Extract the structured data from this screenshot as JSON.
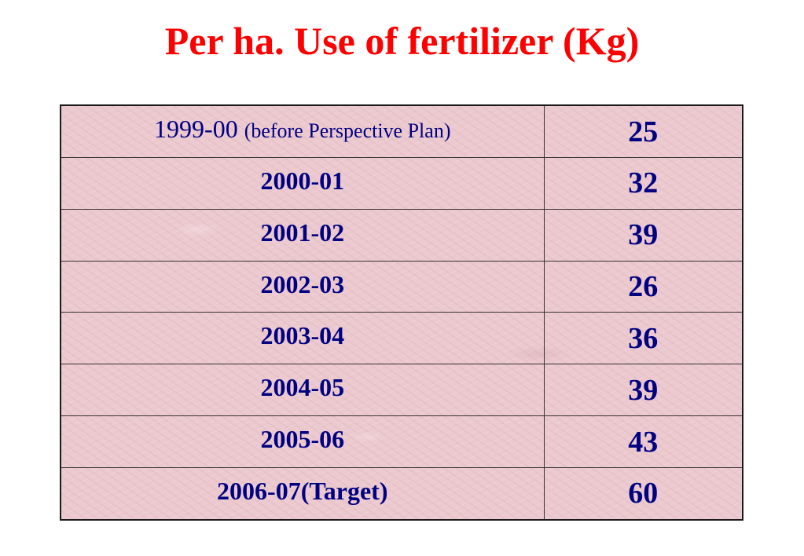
{
  "title": "Per ha. Use of fertilizer (Kg)",
  "rows": [
    {
      "year": "1999-00",
      "note": "(before Perspective Plan)",
      "value": "25"
    },
    {
      "year": "2000-01",
      "note": "",
      "value": "32"
    },
    {
      "year": "2001-02",
      "note": "",
      "value": "39"
    },
    {
      "year": "2002-03",
      "note": "",
      "value": "26"
    },
    {
      "year": "2003-04",
      "note": "",
      "value": "36"
    },
    {
      "year": "2004-05",
      "note": "",
      "value": "39"
    },
    {
      "year": "2005-06",
      "note": "",
      "value": "43"
    },
    {
      "year": "2006-07(Target)",
      "note": "",
      "value": "60"
    }
  ],
  "colors": {
    "title": "#ff0000",
    "cell_text": "#000080",
    "cell_background": "#ecc9cf"
  }
}
